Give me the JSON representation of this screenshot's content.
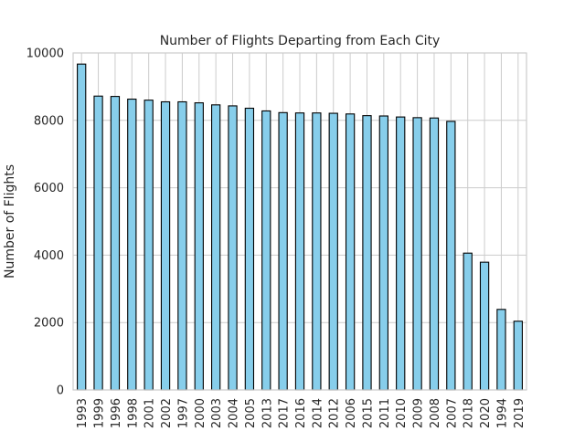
{
  "chart_data": {
    "type": "bar",
    "title": "Number of Flights Departing from Each City",
    "xlabel": "",
    "ylabel": "Number of Flights",
    "categories": [
      "1993",
      "1999",
      "1996",
      "1998",
      "2001",
      "2002",
      "1997",
      "2000",
      "2003",
      "2004",
      "2005",
      "2013",
      "2017",
      "2016",
      "2014",
      "2012",
      "2006",
      "2015",
      "2011",
      "2010",
      "2009",
      "2008",
      "2007",
      "2018",
      "2020",
      "1994",
      "2019"
    ],
    "values": [
      9670,
      8720,
      8710,
      8630,
      8600,
      8550,
      8550,
      8520,
      8460,
      8430,
      8360,
      8280,
      8230,
      8220,
      8220,
      8210,
      8190,
      8140,
      8130,
      8100,
      8080,
      8070,
      7970,
      4060,
      3790,
      2390,
      2040
    ],
    "ylim": [
      0,
      10000
    ],
    "yticks": [
      0,
      2000,
      4000,
      6000,
      8000,
      10000
    ],
    "grid": true,
    "colors": {
      "bar_fill": "#87ceeb",
      "bar_edge": "#000000",
      "grid": "#cccccc",
      "frame": "#cccccc",
      "text": "#262626"
    }
  }
}
